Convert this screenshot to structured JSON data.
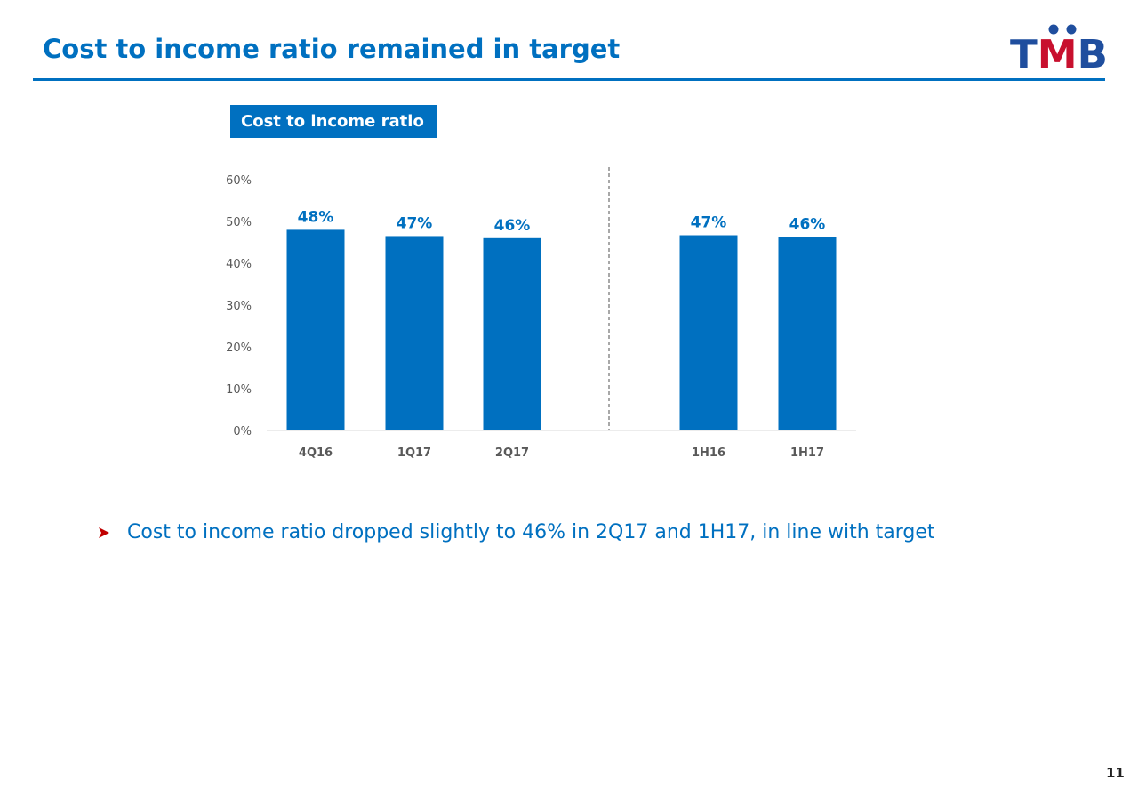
{
  "header": {
    "title": "Cost to income ratio remained in target",
    "logo_text": "TMB",
    "logo_colors": {
      "t": "#1f4e9e",
      "m": "#c8102e",
      "b": "#1f4e9e",
      "dots": "#1f4e9e"
    }
  },
  "chart_label": "Cost to income ratio",
  "chart_data": {
    "type": "bar",
    "title": "Cost to income ratio",
    "categories": [
      "4Q16",
      "1Q17",
      "2Q17",
      "1H16",
      "1H17"
    ],
    "values": [
      48,
      46.5,
      46,
      46.7,
      46.3
    ],
    "data_labels": [
      "48%",
      "47%",
      "46%",
      "47%",
      "46%"
    ],
    "yticks": [
      "0%",
      "10%",
      "20%",
      "30%",
      "40%",
      "50%",
      "60%"
    ],
    "ylim": [
      0,
      60
    ],
    "grid": false,
    "separator_after_category": "2Q17",
    "bar_color": "#0070c0",
    "label_color": "#0070c0"
  },
  "bullet": {
    "text": "Cost to income ratio dropped slightly to 46% in 2Q17 and 1H17, in line with target",
    "marker_color": "#c00000"
  },
  "page_number": "11"
}
